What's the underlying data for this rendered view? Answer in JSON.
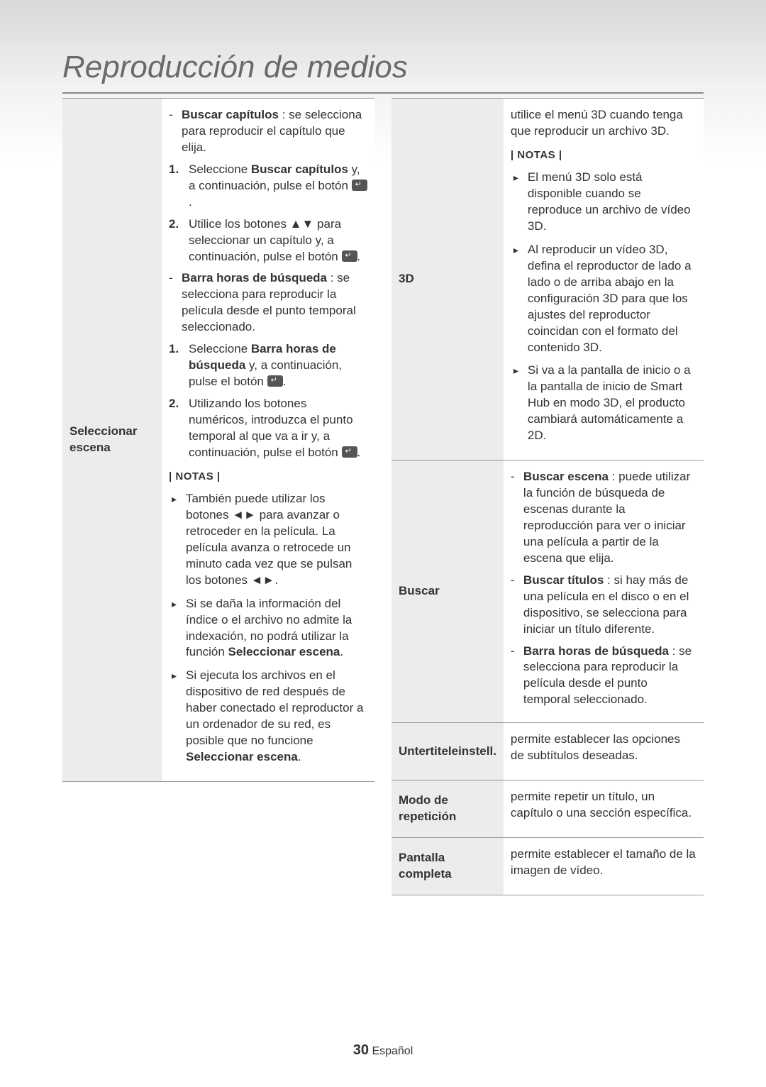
{
  "title": "Reproducción de medios",
  "footer": {
    "page": "30",
    "lang": "Español"
  },
  "colors": {
    "text": "#333333",
    "title": "#6a6a6a",
    "rule": "#888888",
    "cell_border": "#999999",
    "label_bg": "#ececec",
    "page_bg": "#ffffff"
  },
  "left": {
    "label": "Seleccionar escena",
    "items": [
      {
        "type": "dash",
        "bold": "Buscar capítulos",
        "text": " : se selecciona para reproducir el capítulo que elija."
      },
      {
        "type": "num",
        "n": "1.",
        "pre": "Seleccione ",
        "bold": "Buscar capítulos",
        "post": " y, a continuación, pulse el botón ",
        "icon": true,
        "tail": "."
      },
      {
        "type": "num",
        "n": "2.",
        "text": "Utilice los botones ▲▼ para seleccionar un capítulo y, a continuación, pulse el botón ",
        "icon": true,
        "tail": "."
      },
      {
        "type": "dash",
        "bold": "Barra horas de búsqueda",
        "text": " : se selecciona para reproducir la película desde el punto temporal seleccionado."
      },
      {
        "type": "num",
        "n": "1.",
        "pre": "Seleccione ",
        "bold": "Barra horas de búsqueda",
        "post": " y, a continuación, pulse el botón ",
        "icon": true,
        "tail": "."
      },
      {
        "type": "num",
        "n": "2.",
        "text": "Utilizando los botones numéricos, introduzca el punto temporal al que va a ir y, a continuación, pulse el botón ",
        "icon": true,
        "tail": "."
      },
      {
        "type": "notas",
        "text": "| NOTAS |"
      },
      {
        "type": "bullet",
        "text": "También puede utilizar los botones ◄► para avanzar o retroceder en la película. La película avanza o retrocede un minuto cada vez que se pulsan los botones ◄►."
      },
      {
        "type": "bullet",
        "text_parts": [
          "Si se daña la información del índice o el archivo no admite la indexación, no podrá utilizar la función ",
          {
            "bold": "Seleccionar escena"
          },
          "."
        ]
      },
      {
        "type": "bullet",
        "text_parts": [
          "Si ejecuta los archivos en el dispositivo de red después de haber conectado el reproductor a un ordenador de su red, es posible que no funcione ",
          {
            "bold": "Seleccionar escena"
          },
          "."
        ]
      }
    ]
  },
  "right": [
    {
      "label": "3D",
      "items": [
        {
          "type": "plain",
          "text": "utilice el menú 3D cuando tenga que reproducir un archivo 3D."
        },
        {
          "type": "notas",
          "text": "| NOTAS |"
        },
        {
          "type": "bullet",
          "text": "El menú 3D solo está disponible cuando se reproduce un archivo de vídeo 3D."
        },
        {
          "type": "bullet",
          "text": "Al reproducir un vídeo 3D, defina el reproductor de lado a lado o de arriba abajo en la configuración 3D para que los ajustes del reproductor coincidan con el formato del contenido 3D."
        },
        {
          "type": "bullet",
          "text": "Si va a la pantalla de inicio o a la pantalla de inicio de Smart Hub en modo 3D, el producto cambiará automáticamente a 2D."
        }
      ]
    },
    {
      "label": "Buscar",
      "items": [
        {
          "type": "dash",
          "bold": "Buscar escena",
          "text": " : puede utilizar la función de búsqueda de escenas durante la reproducción para ver o iniciar una película a partir de la escena que elija."
        },
        {
          "type": "dash",
          "bold": "Buscar títulos",
          "text": " : si hay más de una película en el disco o en el dispositivo, se selecciona para iniciar un título diferente."
        },
        {
          "type": "dash",
          "bold": "Barra horas de búsqueda",
          "text": " : se selecciona para reproducir la película desde el punto temporal seleccionado."
        }
      ]
    },
    {
      "label": "Untertiteleinstell.",
      "items": [
        {
          "type": "plain",
          "text": "permite establecer las opciones de subtítulos deseadas."
        }
      ]
    },
    {
      "label": "Modo de repetición",
      "items": [
        {
          "type": "plain",
          "text": "permite repetir un título, un capítulo o una sección específica."
        }
      ]
    },
    {
      "label": "Pantalla completa",
      "items": [
        {
          "type": "plain",
          "text": "permite establecer el tamaño de la imagen de vídeo."
        }
      ]
    }
  ]
}
